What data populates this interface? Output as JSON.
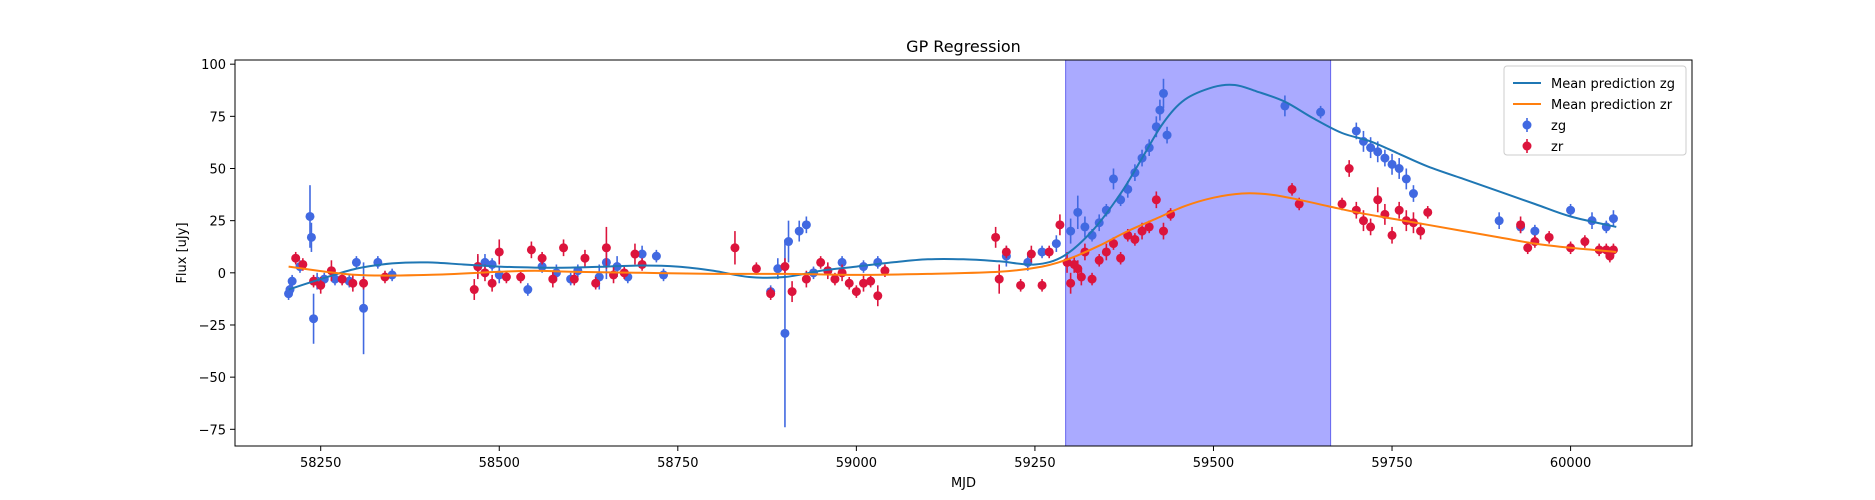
{
  "chart_data": {
    "type": "scatter",
    "title": "GP Regression",
    "xlabel": "MJD",
    "ylabel": "Flux [uJy]",
    "xlim": [
      58130,
      60170
    ],
    "ylim": [
      -83,
      102
    ],
    "xticks": [
      58250,
      58500,
      58750,
      59000,
      59250,
      59500,
      59750,
      60000
    ],
    "xtick_labels": [
      "58250",
      "58500",
      "58750",
      "59000",
      "59250",
      "59500",
      "59750",
      "60000"
    ],
    "yticks": [
      -75,
      -50,
      -25,
      0,
      25,
      50,
      75,
      100
    ],
    "ytick_labels": [
      "−75",
      "−50",
      "−25",
      "0",
      "25",
      "50",
      "75",
      "100"
    ],
    "grid": false,
    "legend_position": "top-right",
    "shaded_region": {
      "x_start": 59293,
      "x_end": 59664,
      "color": "#aaaaff"
    },
    "series": [
      {
        "name": "Mean prediction zg",
        "kind": "line",
        "color": "#1f77b4",
        "x": [
          58205,
          58250,
          58300,
          58350,
          58400,
          58450,
          58500,
          58550,
          58600,
          58650,
          58700,
          58750,
          58800,
          58850,
          58900,
          58950,
          59000,
          59050,
          59100,
          59150,
          59200,
          59250,
          59290,
          59330,
          59370,
          59400,
          59430,
          59460,
          59500,
          59530,
          59560,
          59600,
          59640,
          59680,
          59720,
          59760,
          59800,
          59850,
          59900,
          59950,
          60000,
          60064
        ],
        "y": [
          -8,
          -3,
          2,
          4.5,
          5,
          4,
          3,
          2.5,
          2.5,
          3,
          3.5,
          3,
          1,
          -2,
          -2,
          1,
          3,
          5,
          6.5,
          6.5,
          5.5,
          4,
          8,
          20,
          38,
          55,
          72,
          83,
          89,
          90,
          87,
          82,
          74,
          67,
          63,
          57,
          51,
          45,
          39,
          33,
          27,
          22
        ]
      },
      {
        "name": "Mean prediction zr",
        "kind": "line",
        "color": "#ff7f0e",
        "x": [
          58205,
          58300,
          58400,
          58500,
          58550,
          58600,
          58700,
          58800,
          58900,
          59000,
          59100,
          59200,
          59260,
          59300,
          59340,
          59380,
          59420,
          59460,
          59500,
          59540,
          59580,
          59620,
          59660,
          59700,
          59750,
          59800,
          59850,
          59900,
          59950,
          60000,
          60064
        ],
        "y": [
          3,
          -1,
          -1,
          0.5,
          1,
          0.5,
          0,
          -0.5,
          -0.5,
          -1,
          -0.5,
          0.5,
          3,
          7,
          13,
          20,
          26,
          32,
          36,
          38,
          37.5,
          35,
          32,
          29,
          26,
          23,
          20,
          17,
          14,
          12,
          10
        ]
      },
      {
        "name": "zg",
        "kind": "errorbar",
        "color": "#4169e1",
        "x": [
          58205,
          58207,
          58210,
          58221,
          58235,
          58237,
          58240,
          58245,
          58255,
          58270,
          58290,
          58300,
          58310,
          58330,
          58350,
          58470,
          58480,
          58490,
          58500,
          58540,
          58560,
          58580,
          58600,
          58610,
          58640,
          58650,
          58665,
          58680,
          58700,
          58720,
          58730,
          58880,
          58890,
          58900,
          58905,
          58920,
          58930,
          58940,
          58960,
          58980,
          59010,
          59030,
          59210,
          59240,
          59260,
          59280,
          59300,
          59310,
          59320,
          59330,
          59340,
          59350,
          59360,
          59370,
          59380,
          59390,
          59400,
          59410,
          59420,
          59425,
          59430,
          59435,
          59600,
          59650,
          59700,
          59710,
          59720,
          59730,
          59740,
          59750,
          59760,
          59770,
          59780,
          59900,
          59930,
          59950,
          60000,
          60030,
          60050,
          60060
        ],
        "y": [
          -10,
          -8,
          -4,
          3,
          27,
          17,
          -22,
          -4,
          -3,
          -3,
          -4,
          5,
          -17,
          5,
          -1,
          3,
          5,
          4,
          -1,
          -8,
          3,
          0,
          -3,
          1,
          -2,
          5,
          3,
          -2,
          9,
          8,
          -1,
          -9,
          2,
          -29,
          15,
          20,
          23,
          0,
          1,
          5,
          3,
          5,
          8,
          5,
          10,
          14,
          20,
          29,
          22,
          18,
          24,
          30,
          45,
          35,
          40,
          48,
          55,
          60,
          70,
          78,
          86,
          66,
          80,
          77,
          68,
          63,
          60,
          58,
          55,
          52,
          50,
          45,
          38,
          25,
          22,
          20,
          30,
          25,
          22,
          26
        ],
        "err": [
          3,
          3,
          3,
          3,
          15,
          7,
          12,
          4,
          3,
          3,
          3,
          3,
          22,
          3,
          3,
          5,
          4,
          3,
          4,
          3,
          3,
          4,
          3,
          3,
          6,
          8,
          5,
          3,
          4,
          3,
          3,
          3,
          5,
          45,
          10,
          5,
          4,
          3,
          3,
          3,
          3,
          3,
          5,
          4,
          3,
          4,
          6,
          8,
          5,
          3,
          4,
          3,
          5,
          3,
          4,
          4,
          4,
          4,
          5,
          5,
          7,
          4,
          5,
          3,
          4,
          5,
          5,
          5,
          4,
          5,
          5,
          5,
          4,
          4,
          3,
          3,
          3,
          4,
          3,
          4
        ]
      },
      {
        "name": "zr",
        "kind": "errorbar",
        "color": "#dc143c",
        "x": [
          58215,
          58225,
          58240,
          58250,
          58265,
          58280,
          58295,
          58310,
          58340,
          58465,
          58470,
          58480,
          58490,
          58500,
          58510,
          58530,
          58545,
          58560,
          58575,
          58590,
          58605,
          58620,
          58635,
          58650,
          58660,
          58675,
          58690,
          58700,
          58830,
          58860,
          58880,
          58900,
          58910,
          58930,
          58950,
          58960,
          58970,
          58980,
          58990,
          59000,
          59010,
          59020,
          59030,
          59040,
          59195,
          59200,
          59210,
          59230,
          59245,
          59260,
          59270,
          59285,
          59295,
          59300,
          59305,
          59310,
          59315,
          59320,
          59330,
          59340,
          59350,
          59360,
          59370,
          59380,
          59390,
          59400,
          59410,
          59420,
          59430,
          59440,
          59610,
          59620,
          59680,
          59690,
          59700,
          59710,
          59720,
          59730,
          59740,
          59750,
          59760,
          59770,
          59780,
          59790,
          59800,
          59930,
          59940,
          59950,
          59970,
          60000,
          60020,
          60040,
          60050,
          60055,
          60060
        ],
        "y": [
          7,
          4,
          -4,
          -6,
          1,
          -3,
          -5,
          -5,
          -2,
          -8,
          3,
          0,
          -5,
          10,
          -2,
          -2,
          11,
          7,
          -3,
          12,
          -3,
          7,
          -5,
          12,
          -1,
          0,
          9,
          4,
          12,
          2,
          -10,
          3,
          -9,
          -3,
          5,
          1,
          -3,
          0,
          -5,
          -9,
          -5,
          -4,
          -11,
          1,
          17,
          -3,
          10,
          -6,
          9,
          -6,
          10,
          23,
          5,
          -5,
          4,
          2,
          -2,
          10,
          -3,
          6,
          10,
          14,
          7,
          18,
          16,
          20,
          22,
          35,
          20,
          28,
          40,
          33,
          33,
          50,
          30,
          25,
          22,
          35,
          28,
          18,
          30,
          25,
          24,
          20,
          29,
          23,
          12,
          15,
          17,
          12,
          15,
          11,
          11,
          8,
          11
        ],
        "err": [
          3,
          3,
          3,
          4,
          5,
          3,
          4,
          3,
          3,
          5,
          6,
          4,
          4,
          6,
          3,
          3,
          4,
          3,
          4,
          4,
          3,
          4,
          3,
          10,
          4,
          3,
          5,
          3,
          8,
          3,
          3,
          4,
          5,
          4,
          3,
          4,
          3,
          4,
          3,
          3,
          4,
          3,
          5,
          3,
          5,
          7,
          3,
          3,
          4,
          3,
          3,
          5,
          5,
          5,
          4,
          4,
          4,
          4,
          3,
          3,
          4,
          3,
          3,
          3,
          3,
          4,
          3,
          4,
          4,
          3,
          3,
          3,
          3,
          4,
          4,
          5,
          4,
          6,
          5,
          4,
          4,
          5,
          5,
          4,
          3,
          4,
          3,
          3,
          3,
          3,
          3,
          3,
          3,
          3,
          3
        ]
      }
    ]
  }
}
